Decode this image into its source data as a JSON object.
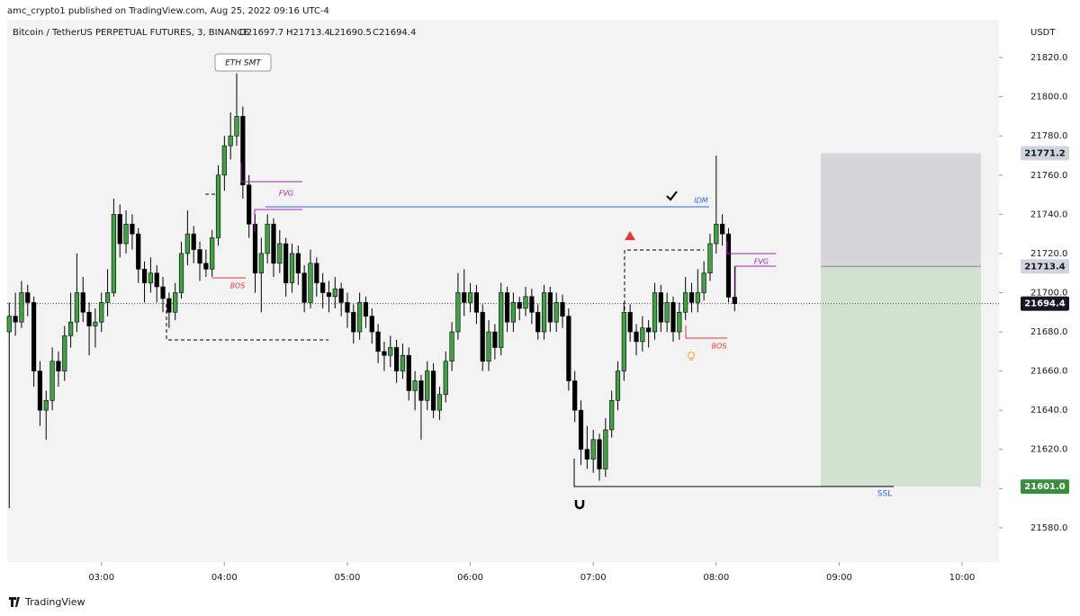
{
  "header": {
    "author_line": "amc_crypto1 published on TradingView.com, Aug 25, 2022 09:16 UTC-4",
    "symbol": "Bitcoin / TetherUS PERPETUAL FUTURES, 3, BINANCE",
    "open": "O21697.7",
    "high": "H21713.4",
    "low": "L21690.5",
    "close": "C21694.4"
  },
  "footer": "TradingView",
  "chart_data": {
    "type": "candlestick",
    "currency": "USDT",
    "up_color": "#43a047",
    "down_color": "#000000",
    "x": [
      "02:15",
      "02:18",
      "02:21",
      "02:24",
      "02:27",
      "02:30",
      "02:33",
      "02:36",
      "02:39",
      "02:42",
      "02:45",
      "02:48",
      "02:51",
      "02:54",
      "02:57",
      "03:00",
      "03:03",
      "03:06",
      "03:09",
      "03:12",
      "03:15",
      "03:18",
      "03:21",
      "03:24",
      "03:27",
      "03:30",
      "03:33",
      "03:36",
      "03:39",
      "03:42",
      "03:45",
      "03:48",
      "03:51",
      "03:54",
      "03:57",
      "04:00",
      "04:03",
      "04:06",
      "04:09",
      "04:12",
      "04:15",
      "04:18",
      "04:21",
      "04:24",
      "04:27",
      "04:30",
      "04:33",
      "04:36",
      "04:39",
      "04:42",
      "04:45",
      "04:48",
      "04:51",
      "04:54",
      "04:57",
      "05:00",
      "05:03",
      "05:06",
      "05:09",
      "05:12",
      "05:15",
      "05:18",
      "05:21",
      "05:24",
      "05:27",
      "05:30",
      "05:33",
      "05:36",
      "05:39",
      "05:42",
      "05:45",
      "05:48",
      "05:51",
      "05:54",
      "05:57",
      "06:00",
      "06:03",
      "06:06",
      "06:09",
      "06:12",
      "06:15",
      "06:18",
      "06:21",
      "06:24",
      "06:27",
      "06:30",
      "06:33",
      "06:36",
      "06:39",
      "06:42",
      "06:45",
      "06:48",
      "06:51",
      "06:54",
      "06:57",
      "07:00",
      "07:03",
      "07:06",
      "07:09",
      "07:12",
      "07:15",
      "07:18",
      "07:21",
      "07:24",
      "07:27",
      "07:30",
      "07:33",
      "07:36",
      "07:39",
      "07:42",
      "07:45",
      "07:48",
      "07:51",
      "07:54",
      "07:57",
      "08:00",
      "08:03",
      "08:06",
      "08:09"
    ],
    "ohlc": [
      [
        21680,
        21695,
        21590,
        21688
      ],
      [
        21688,
        21700,
        21678,
        21685
      ],
      [
        21685,
        21706,
        21682,
        21700
      ],
      [
        21700,
        21704,
        21688,
        21695
      ],
      [
        21695,
        21698,
        21652,
        21660
      ],
      [
        21660,
        21665,
        21632,
        21640
      ],
      [
        21640,
        21650,
        21625,
        21645
      ],
      [
        21645,
        21672,
        21640,
        21665
      ],
      [
        21665,
        21670,
        21652,
        21660
      ],
      [
        21660,
        21683,
        21655,
        21678
      ],
      [
        21678,
        21700,
        21672,
        21685
      ],
      [
        21685,
        21720,
        21680,
        21700
      ],
      [
        21700,
        21708,
        21685,
        21690
      ],
      [
        21690,
        21695,
        21668,
        21683
      ],
      [
        21683,
        21692,
        21672,
        21685
      ],
      [
        21685,
        21700,
        21680,
        21695
      ],
      [
        21695,
        21712,
        21688,
        21700
      ],
      [
        21700,
        21748,
        21698,
        21740
      ],
      [
        21740,
        21745,
        21718,
        21725
      ],
      [
        21725,
        21742,
        21720,
        21735
      ],
      [
        21735,
        21740,
        21722,
        21730
      ],
      [
        21730,
        21733,
        21705,
        21712
      ],
      [
        21712,
        21716,
        21695,
        21705
      ],
      [
        21705,
        21718,
        21700,
        21710
      ],
      [
        21710,
        21714,
        21695,
        21703
      ],
      [
        21703,
        21708,
        21690,
        21697
      ],
      [
        21697,
        21700,
        21682,
        21690
      ],
      [
        21690,
        21705,
        21686,
        21700
      ],
      [
        21700,
        21726,
        21697,
        21720
      ],
      [
        21720,
        21742,
        21714,
        21730
      ],
      [
        21730,
        21734,
        21715,
        21722
      ],
      [
        21722,
        21726,
        21706,
        21715
      ],
      [
        21715,
        21722,
        21708,
        21712
      ],
      [
        21712,
        21732,
        21708,
        21728
      ],
      [
        21728,
        21765,
        21724,
        21760
      ],
      [
        21760,
        21780,
        21752,
        21775
      ],
      [
        21775,
        21792,
        21768,
        21780
      ],
      [
        21780,
        21812,
        21775,
        21790
      ],
      [
        21790,
        21795,
        21748,
        21755
      ],
      [
        21755,
        21760,
        21728,
        21735
      ],
      [
        21735,
        21740,
        21700,
        21710
      ],
      [
        21710,
        21728,
        21690,
        21720
      ],
      [
        21720,
        21740,
        21715,
        21735
      ],
      [
        21735,
        21738,
        21708,
        21715
      ],
      [
        21715,
        21732,
        21710,
        21725
      ],
      [
        21725,
        21728,
        21698,
        21705
      ],
      [
        21705,
        21725,
        21700,
        21720
      ],
      [
        21720,
        21724,
        21704,
        21710
      ],
      [
        21710,
        21714,
        21690,
        21695
      ],
      [
        21695,
        21722,
        21692,
        21715
      ],
      [
        21715,
        21718,
        21698,
        21705
      ],
      [
        21705,
        21710,
        21692,
        21700
      ],
      [
        21700,
        21706,
        21690,
        21698
      ],
      [
        21698,
        21708,
        21692,
        21702
      ],
      [
        21702,
        21705,
        21688,
        21695
      ],
      [
        21695,
        21700,
        21682,
        21690
      ],
      [
        21690,
        21694,
        21674,
        21680
      ],
      [
        21680,
        21700,
        21676,
        21695
      ],
      [
        21695,
        21698,
        21682,
        21688
      ],
      [
        21688,
        21692,
        21674,
        21680
      ],
      [
        21680,
        21684,
        21664,
        21670
      ],
      [
        21670,
        21675,
        21660,
        21668
      ],
      [
        21668,
        21678,
        21662,
        21672
      ],
      [
        21672,
        21676,
        21654,
        21660
      ],
      [
        21660,
        21674,
        21656,
        21668
      ],
      [
        21668,
        21672,
        21645,
        21650
      ],
      [
        21650,
        21660,
        21640,
        21655
      ],
      [
        21655,
        21658,
        21625,
        21645
      ],
      [
        21645,
        21665,
        21640,
        21660
      ],
      [
        21660,
        21664,
        21636,
        21640
      ],
      [
        21640,
        21652,
        21635,
        21648
      ],
      [
        21648,
        21670,
        21644,
        21665
      ],
      [
        21665,
        21685,
        21660,
        21680
      ],
      [
        21680,
        21710,
        21676,
        21700
      ],
      [
        21700,
        21712,
        21688,
        21695
      ],
      [
        21695,
        21705,
        21690,
        21700
      ],
      [
        21700,
        21704,
        21684,
        21690
      ],
      [
        21690,
        21694,
        21660,
        21665
      ],
      [
        21665,
        21686,
        21660,
        21680
      ],
      [
        21680,
        21684,
        21666,
        21672
      ],
      [
        21672,
        21705,
        21668,
        21700
      ],
      [
        21700,
        21703,
        21680,
        21685
      ],
      [
        21685,
        21700,
        21680,
        21695
      ],
      [
        21695,
        21698,
        21686,
        21692
      ],
      [
        21692,
        21703,
        21688,
        21698
      ],
      [
        21698,
        21702,
        21684,
        21690
      ],
      [
        21690,
        21694,
        21676,
        21680
      ],
      [
        21680,
        21704,
        21676,
        21700
      ],
      [
        21700,
        21703,
        21680,
        21685
      ],
      [
        21685,
        21700,
        21680,
        21695
      ],
      [
        21695,
        21699,
        21682,
        21688
      ],
      [
        21688,
        21692,
        21650,
        21655
      ],
      [
        21655,
        21660,
        21634,
        21640
      ],
      [
        21640,
        21645,
        21612,
        21620
      ],
      [
        21620,
        21632,
        21610,
        21615
      ],
      [
        21615,
        21630,
        21608,
        21625
      ],
      [
        21625,
        21628,
        21604,
        21610
      ],
      [
        21610,
        21636,
        21606,
        21630
      ],
      [
        21630,
        21650,
        21626,
        21645
      ],
      [
        21645,
        21665,
        21640,
        21660
      ],
      [
        21660,
        21695,
        21655,
        21690
      ],
      [
        21690,
        21694,
        21675,
        21680
      ],
      [
        21680,
        21684,
        21668,
        21675
      ],
      [
        21675,
        21688,
        21670,
        21682
      ],
      [
        21682,
        21686,
        21672,
        21680
      ],
      [
        21680,
        21705,
        21676,
        21700
      ],
      [
        21700,
        21704,
        21680,
        21685
      ],
      [
        21685,
        21700,
        21680,
        21695
      ],
      [
        21695,
        21698,
        21675,
        21680
      ],
      [
        21680,
        21695,
        21676,
        21690
      ],
      [
        21690,
        21708,
        21686,
        21700
      ],
      [
        21700,
        21705,
        21690,
        21695
      ],
      [
        21695,
        21712,
        21690,
        21700
      ],
      [
        21700,
        21716,
        21696,
        21710
      ],
      [
        21710,
        21730,
        21706,
        21725
      ],
      [
        21725,
        21770,
        21720,
        21735
      ],
      [
        21735,
        21740,
        21724,
        21730
      ],
      [
        21730,
        21733,
        21695,
        21697.7
      ],
      [
        21697.7,
        21713.4,
        21690.5,
        21694.4
      ]
    ],
    "xlim": [
      "02:14",
      "10:18"
    ],
    "xticks": [
      "03:00",
      "04:00",
      "05:00",
      "06:00",
      "07:00",
      "08:00",
      "09:00",
      "10:00"
    ],
    "ylim": [
      21562.5,
      21839.3
    ],
    "yticks": [
      {
        "value": 21580,
        "label": "21580.0"
      },
      {
        "value": 21600,
        "label": "21600.0"
      },
      {
        "value": 21620,
        "label": "21620.0"
      },
      {
        "value": 21640,
        "label": "21640.0"
      },
      {
        "value": 21660,
        "label": "21660.0"
      },
      {
        "value": 21680,
        "label": "21680.0"
      },
      {
        "value": 21700,
        "label": "21700.0"
      },
      {
        "value": 21720,
        "label": "21720.0"
      },
      {
        "value": 21740,
        "label": "21740.0"
      },
      {
        "value": 21760,
        "label": "21760.0"
      },
      {
        "value": 21780,
        "label": "21780.0"
      },
      {
        "value": 21800,
        "label": "21800.0"
      },
      {
        "value": 21820,
        "label": "21820.0"
      }
    ],
    "price_labels": [
      21771.2,
      21713.4,
      21694.4,
      {
        "value": 21601,
        "label": "21601.0"
      }
    ],
    "price_label_colors": [
      "#d1d4dc",
      "#d1d4dc",
      "#131722",
      "#388e3c"
    ],
    "price_label_text_colors": [
      "#131722",
      "#131722",
      "#ffffff",
      "#ffffff"
    ],
    "annotations": [
      "ETH SMT",
      "FVG",
      "BOS",
      "IDM",
      "BOS",
      "FVG",
      "SSL"
    ]
  }
}
